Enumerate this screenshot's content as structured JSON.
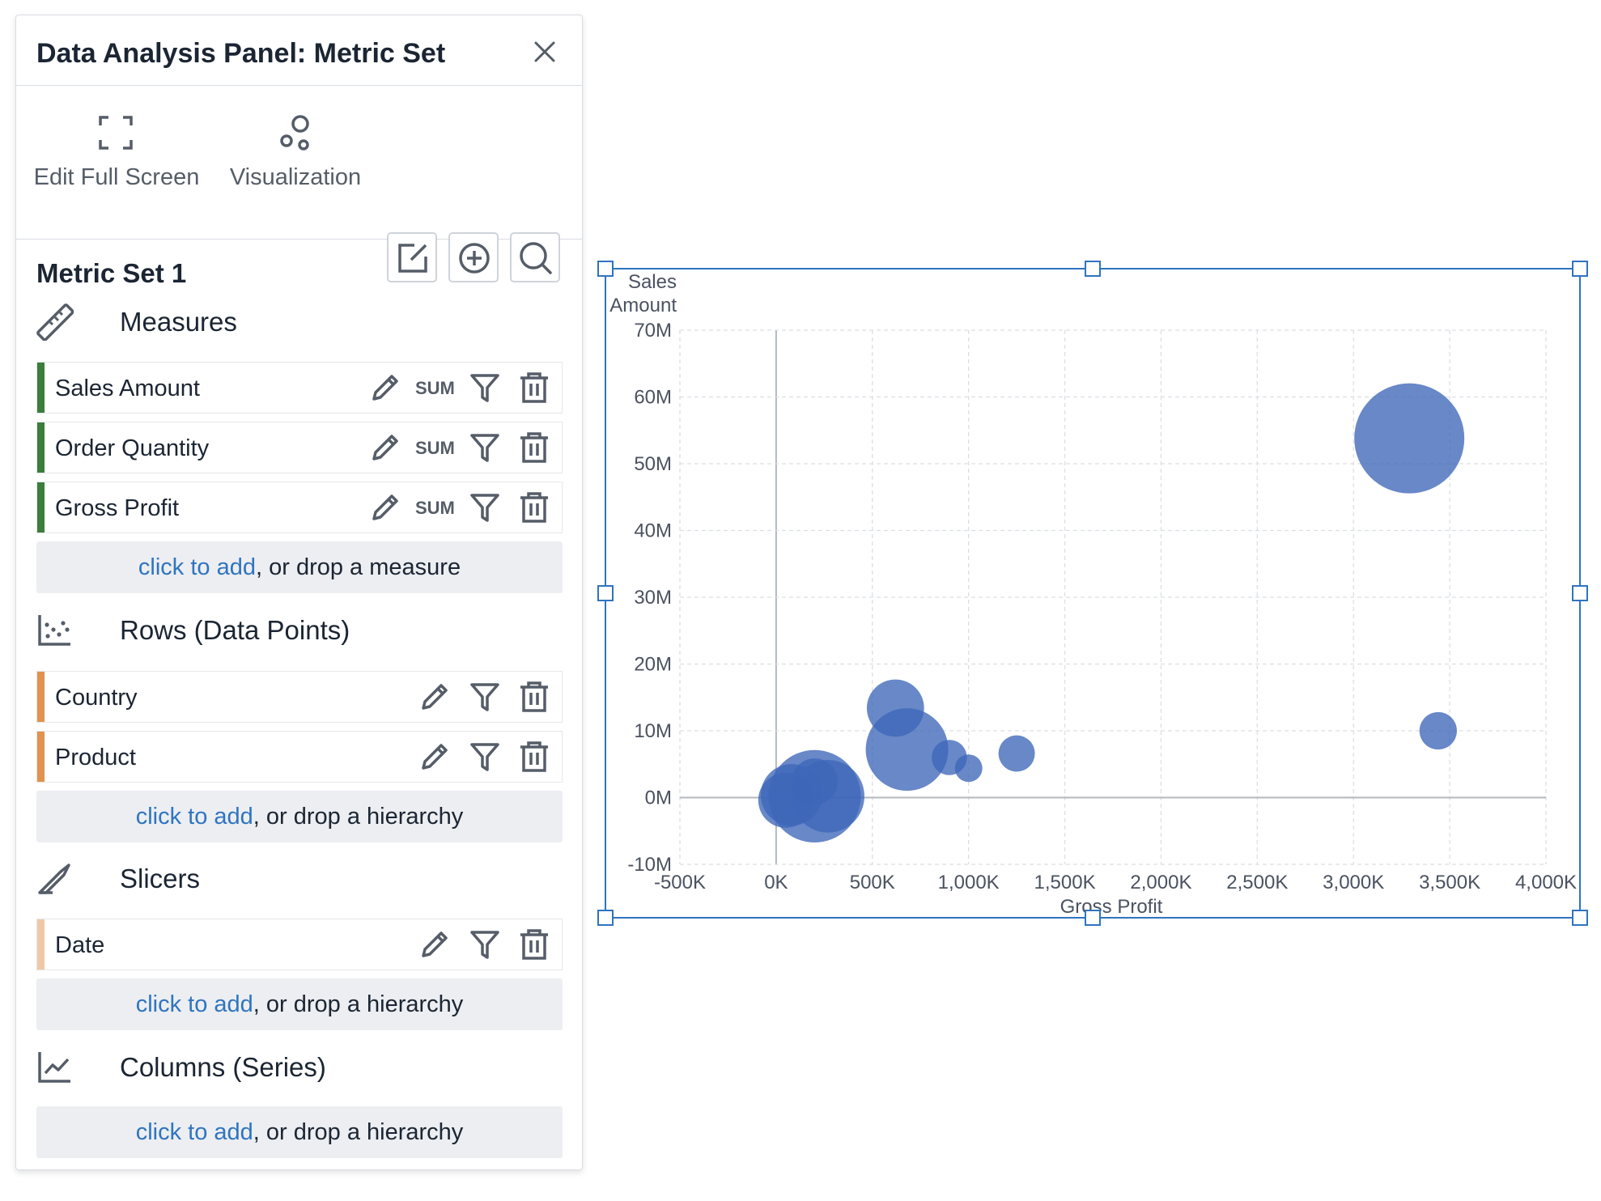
{
  "panel": {
    "title": "Data Analysis Panel: Metric Set",
    "toolbar": {
      "edit_full_screen": "Edit Full Screen",
      "visualization": "Visualization"
    },
    "metric_set_title": "Metric Set 1",
    "sections": {
      "measures": {
        "label": "Measures",
        "items": [
          {
            "label": "Sales Amount",
            "aggregation": "SUM"
          },
          {
            "label": "Order Quantity",
            "aggregation": "SUM"
          },
          {
            "label": "Gross Profit",
            "aggregation": "SUM"
          }
        ],
        "add_link": "click to add",
        "add_rest": ", or drop a measure"
      },
      "rows": {
        "label": "Rows (Data Points)",
        "items": [
          {
            "label": "Country"
          },
          {
            "label": "Product"
          }
        ],
        "add_link": "click to add",
        "add_rest": ", or drop a hierarchy"
      },
      "slicers": {
        "label": "Slicers",
        "items": [
          {
            "label": "Date"
          }
        ],
        "add_link": "click to add",
        "add_rest": ", or drop a hierarchy"
      },
      "columns": {
        "label": "Columns (Series)",
        "add_link": "click to add",
        "add_rest": ", or drop a hierarchy"
      }
    },
    "colors": {
      "measure_bar": "#3b7d3b",
      "row_bar": "#e0924e",
      "slicer_bar": "#efc9a6",
      "link": "#2f74c0"
    }
  },
  "chart_data": {
    "type": "scatter",
    "subtype": "bubble",
    "xlabel": "Gross Profit",
    "ylabel_lines": [
      "Sales",
      "Amount"
    ],
    "xlim": [
      -500000,
      4000000
    ],
    "ylim": [
      -10000000,
      70000000
    ],
    "x_ticks": [
      {
        "v": -500000,
        "label": "-500K"
      },
      {
        "v": 0,
        "label": "0K"
      },
      {
        "v": 500000,
        "label": "500K"
      },
      {
        "v": 1000000,
        "label": "1,000K"
      },
      {
        "v": 1500000,
        "label": "1,500K"
      },
      {
        "v": 2000000,
        "label": "2,000K"
      },
      {
        "v": 2500000,
        "label": "2,500K"
      },
      {
        "v": 3000000,
        "label": "3,000K"
      },
      {
        "v": 3500000,
        "label": "3,500K"
      },
      {
        "v": 4000000,
        "label": "4,000K"
      }
    ],
    "y_ticks": [
      {
        "v": -10000000,
        "label": "-10M"
      },
      {
        "v": 0,
        "label": "0M"
      },
      {
        "v": 10000000,
        "label": "10M"
      },
      {
        "v": 20000000,
        "label": "20M"
      },
      {
        "v": 30000000,
        "label": "30M"
      },
      {
        "v": 40000000,
        "label": "40M"
      },
      {
        "v": 50000000,
        "label": "50M"
      },
      {
        "v": 60000000,
        "label": "60M"
      },
      {
        "v": 70000000,
        "label": "70M"
      }
    ],
    "grid": true,
    "bubble_color": "#3d67b8",
    "points": [
      {
        "x": 3290000,
        "y": 53800000,
        "size": 1.0
      },
      {
        "x": 3440000,
        "y": 10000000,
        "size": 0.34
      },
      {
        "x": 620000,
        "y": 13400000,
        "size": 0.52
      },
      {
        "x": 680000,
        "y": 7200000,
        "size": 0.75
      },
      {
        "x": 900000,
        "y": 6000000,
        "size": 0.32
      },
      {
        "x": 1000000,
        "y": 4400000,
        "size": 0.25
      },
      {
        "x": 1250000,
        "y": 6600000,
        "size": 0.33
      },
      {
        "x": 200000,
        "y": 200000,
        "size": 0.84
      },
      {
        "x": 270000,
        "y": 200000,
        "size": 0.66
      },
      {
        "x": 80000,
        "y": 400000,
        "size": 0.56
      },
      {
        "x": 200000,
        "y": 2400000,
        "size": 0.42
      },
      {
        "x": 50000,
        "y": -400000,
        "size": 0.5
      }
    ]
  }
}
